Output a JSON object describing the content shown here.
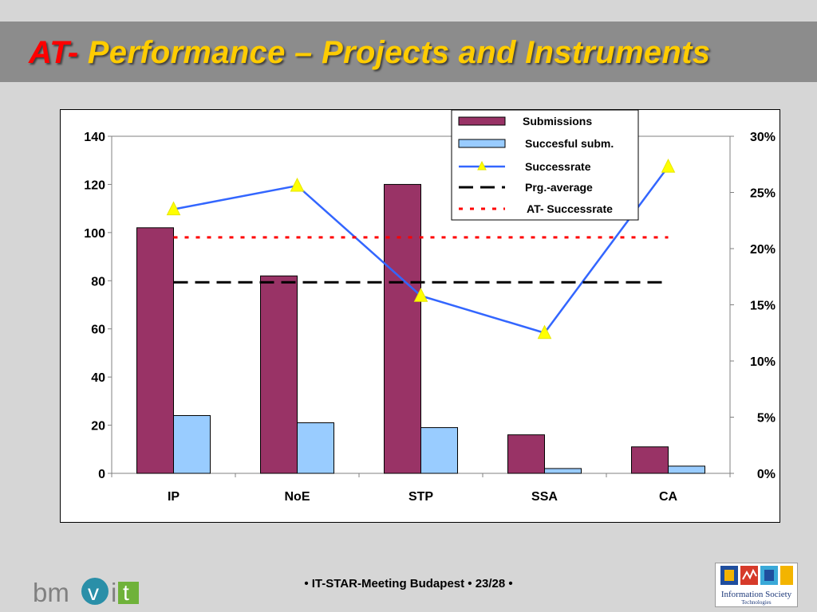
{
  "header": {
    "title_prefix": "AT-",
    "title_main": "Performance – Projects and Instruments"
  },
  "footer": {
    "text": "• IT-STAR-Meeting Budapest • 23/28 •"
  },
  "logos": {
    "left_text_a": "bm",
    "left_text_b": "v",
    "left_text_c": "i",
    "left_text_d": "t",
    "right_text": "Information Society",
    "right_subtext": "Technologies"
  },
  "colors": {
    "submissions": "#993366",
    "successful": "#99ccff",
    "successrate": "#3366ff",
    "marker": "#ffff00",
    "prg_average": "#000000",
    "at_successrate": "#ff0000",
    "title_prefix": "#ff0000",
    "title_main": "#ffcc00"
  },
  "chart_data": {
    "type": "bar",
    "categories": [
      "IP",
      "NoE",
      "STP",
      "SSA",
      "CA"
    ],
    "series": [
      {
        "name": "Submissions",
        "type": "bar",
        "axis": "left",
        "values": [
          102,
          82,
          120,
          16,
          11
        ]
      },
      {
        "name": "Succesful subm.",
        "type": "bar",
        "axis": "left",
        "values": [
          24,
          21,
          19,
          2,
          3
        ]
      },
      {
        "name": "Successrate",
        "type": "line",
        "axis": "right",
        "values": [
          0.235,
          0.256,
          0.158,
          0.125,
          0.273
        ]
      },
      {
        "name": "Prg.-average",
        "type": "line",
        "axis": "right",
        "values": [
          0.17,
          0.17,
          0.17,
          0.17,
          0.17
        ]
      },
      {
        "name": "AT- Successrate",
        "type": "line",
        "axis": "right",
        "values": [
          0.21,
          0.21,
          0.21,
          0.21,
          0.21
        ]
      }
    ],
    "ylim": [
      0,
      140
    ],
    "y2lim": [
      0,
      0.3
    ],
    "y_ticks": [
      "0",
      "20",
      "40",
      "60",
      "80",
      "100",
      "120",
      "140"
    ],
    "y2_ticks": [
      "0%",
      "5%",
      "10%",
      "15%",
      "20%",
      "25%",
      "30%"
    ],
    "legend_position": "top-right",
    "grid": false
  }
}
